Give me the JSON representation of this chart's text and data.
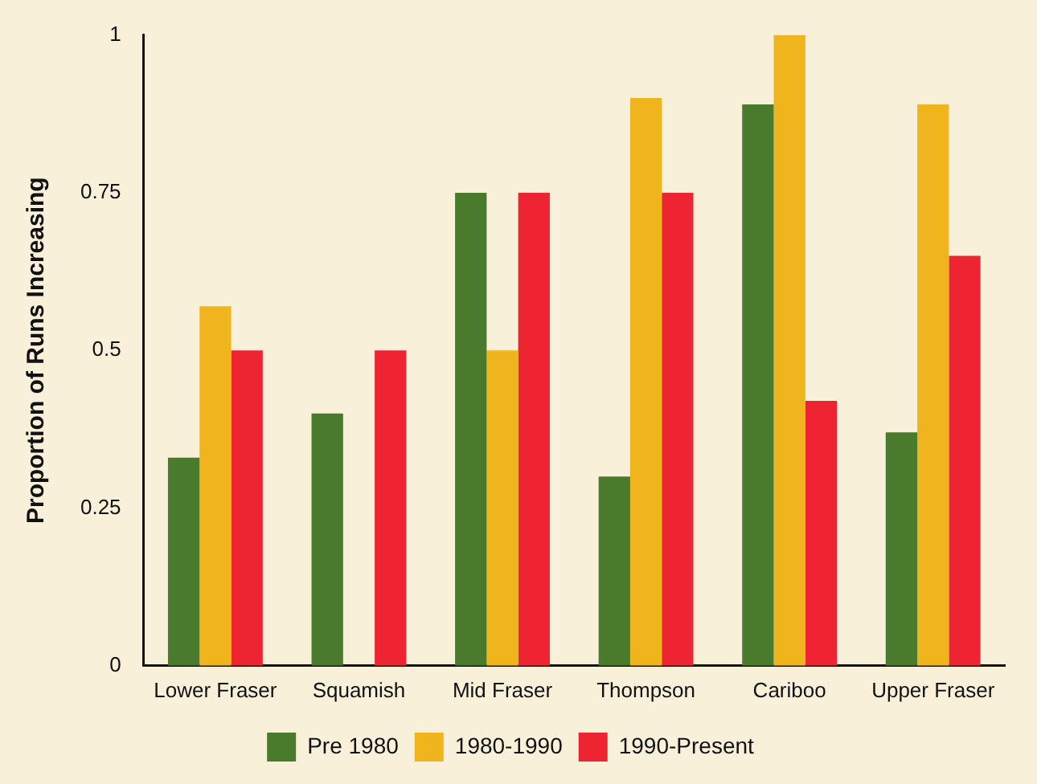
{
  "chart_data": {
    "type": "bar",
    "ylabel": "Proportion of Runs Increasing",
    "categories": [
      "Lower Fraser",
      "Squamish",
      "Mid Fraser",
      "Thompson",
      "Cariboo",
      "Upper Fraser"
    ],
    "series": [
      {
        "name": "Pre 1980",
        "color": "#4a7a2c",
        "values": [
          0.33,
          0.4,
          0.75,
          0.3,
          0.89,
          0.37
        ]
      },
      {
        "name": "1980-1990",
        "color": "#f0b41c",
        "values": [
          0.57,
          null,
          0.5,
          0.9,
          1,
          0.89
        ]
      },
      {
        "name": "1990-Present",
        "color": "#ee2433",
        "values": [
          0.5,
          0.5,
          0.75,
          0.75,
          0.42,
          0.65
        ]
      }
    ],
    "ylim": [
      0,
      1
    ],
    "yticks": [
      0,
      0.25,
      0.5,
      0.75,
      1
    ],
    "grid": false,
    "legend": "bottom"
  }
}
